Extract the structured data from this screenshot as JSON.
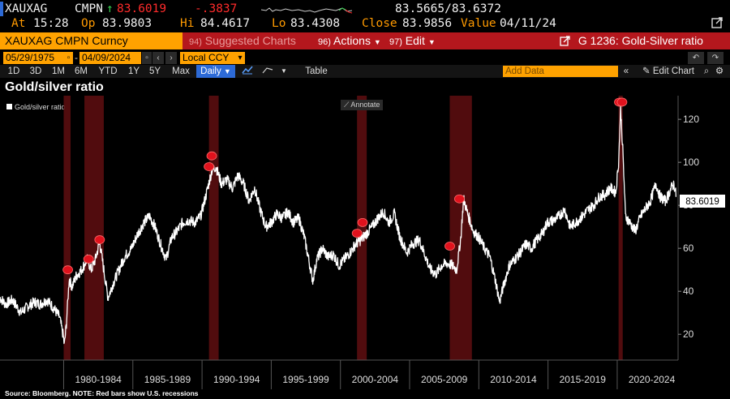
{
  "quote": {
    "ticker": "XAUXAG",
    "source": "CMPN",
    "arrow": "↑",
    "last": "83.6019",
    "change": "-.3837",
    "bid_ask": "83.5665/83.6372",
    "at_label": "At",
    "time": "15:28",
    "open_label": "Op",
    "open": "83.9803",
    "hi_label": "Hi",
    "hi": "84.4617",
    "lo_label": "Lo",
    "lo": "83.4308",
    "close_label": "Close",
    "close": "83.9856",
    "value_label": "Value",
    "value_date": "04/11/24"
  },
  "command": {
    "security": "XAUXAG CMPN Curncy",
    "suggested": "Suggested Charts",
    "suggested_num": "94)",
    "actions": "Actions",
    "actions_num": "96)",
    "edit": "Edit",
    "edit_num": "97)",
    "chart_title": "G 1236: Gold-Silver ratio"
  },
  "dates": {
    "start": "05/29/1975",
    "end": "04/09/2024",
    "currency": "Local CCY"
  },
  "periods": [
    "1D",
    "3D",
    "1M",
    "6M",
    "YTD",
    "1Y",
    "5Y",
    "Max"
  ],
  "frequency": "Daily",
  "table_label": "Table",
  "add_data_placeholder": "Add Data",
  "edit_chart_label": "Edit Chart",
  "chart": {
    "title": "Gold/silver ratio",
    "annotate_label": "Annotate",
    "source_note": "Source: Bloomberg. NOTE: Red bars show U.S. recessions",
    "last_value_label": "83.6019"
  },
  "chart_data": {
    "type": "line",
    "series": [
      {
        "name": "Gold/silver ratio",
        "points": [
          [
            1975.4,
            37
          ],
          [
            1975.8,
            34
          ],
          [
            1976.3,
            36
          ],
          [
            1976.9,
            30
          ],
          [
            1977.4,
            33
          ],
          [
            1977.9,
            35
          ],
          [
            1978.3,
            34
          ],
          [
            1978.8,
            36
          ],
          [
            1979.3,
            32
          ],
          [
            1979.7,
            28
          ],
          [
            1979.95,
            20
          ],
          [
            1980.05,
            15
          ],
          [
            1980.2,
            25
          ],
          [
            1980.4,
            46
          ],
          [
            1980.6,
            42
          ],
          [
            1980.9,
            47
          ],
          [
            1981.3,
            50
          ],
          [
            1981.7,
            55
          ],
          [
            1982.0,
            50
          ],
          [
            1982.3,
            55
          ],
          [
            1982.6,
            63
          ],
          [
            1982.9,
            50
          ],
          [
            1983.2,
            37
          ],
          [
            1983.6,
            44
          ],
          [
            1984.0,
            50
          ],
          [
            1984.4,
            56
          ],
          [
            1984.9,
            60
          ],
          [
            1985.3,
            66
          ],
          [
            1985.8,
            72
          ],
          [
            1986.2,
            75
          ],
          [
            1986.6,
            70
          ],
          [
            1987.0,
            62
          ],
          [
            1987.4,
            55
          ],
          [
            1987.8,
            65
          ],
          [
            1988.2,
            68
          ],
          [
            1988.6,
            72
          ],
          [
            1989.0,
            73
          ],
          [
            1989.5,
            72
          ],
          [
            1989.9,
            75
          ],
          [
            1990.3,
            85
          ],
          [
            1990.7,
            96
          ],
          [
            1991.0,
            98
          ],
          [
            1991.4,
            90
          ],
          [
            1991.8,
            92
          ],
          [
            1992.2,
            88
          ],
          [
            1992.6,
            94
          ],
          [
            1993.0,
            90
          ],
          [
            1993.4,
            82
          ],
          [
            1993.8,
            88
          ],
          [
            1994.2,
            78
          ],
          [
            1994.6,
            70
          ],
          [
            1995.0,
            72
          ],
          [
            1995.4,
            76
          ],
          [
            1995.8,
            74
          ],
          [
            1996.2,
            77
          ],
          [
            1996.6,
            72
          ],
          [
            1997.0,
            74
          ],
          [
            1997.4,
            65
          ],
          [
            1998.0,
            45
          ],
          [
            1998.3,
            55
          ],
          [
            1998.7,
            60
          ],
          [
            1999.1,
            56
          ],
          [
            1999.5,
            57
          ],
          [
            1999.9,
            52
          ],
          [
            2000.3,
            55
          ],
          [
            2000.7,
            58
          ],
          [
            2001.1,
            62
          ],
          [
            2001.5,
            64
          ],
          [
            2001.9,
            67
          ],
          [
            2002.3,
            70
          ],
          [
            2002.7,
            74
          ],
          [
            2003.1,
            77
          ],
          [
            2003.5,
            72
          ],
          [
            2003.9,
            76
          ],
          [
            2004.3,
            65
          ],
          [
            2004.8,
            58
          ],
          [
            2005.2,
            62
          ],
          [
            2005.7,
            64
          ],
          [
            2006.1,
            57
          ],
          [
            2006.5,
            50
          ],
          [
            2006.9,
            48
          ],
          [
            2007.3,
            52
          ],
          [
            2007.7,
            53
          ],
          [
            2008.1,
            52
          ],
          [
            2008.4,
            50
          ],
          [
            2008.7,
            65
          ],
          [
            2008.9,
            83
          ],
          [
            2009.2,
            76
          ],
          [
            2009.6,
            68
          ],
          [
            2010.0,
            65
          ],
          [
            2010.4,
            60
          ],
          [
            2010.8,
            56
          ],
          [
            2011.2,
            45
          ],
          [
            2011.5,
            35
          ],
          [
            2011.8,
            43
          ],
          [
            2012.2,
            52
          ],
          [
            2012.6,
            55
          ],
          [
            2013.0,
            58
          ],
          [
            2013.4,
            62
          ],
          [
            2013.8,
            60
          ],
          [
            2014.2,
            64
          ],
          [
            2014.6,
            67
          ],
          [
            2014.95,
            72
          ],
          [
            2015.4,
            73
          ],
          [
            2015.8,
            75
          ],
          [
            2016.2,
            78
          ],
          [
            2016.6,
            70
          ],
          [
            2017.0,
            72
          ],
          [
            2017.5,
            75
          ],
          [
            2017.9,
            78
          ],
          [
            2018.3,
            80
          ],
          [
            2018.7,
            84
          ],
          [
            2019.1,
            85
          ],
          [
            2019.5,
            88
          ],
          [
            2019.9,
            86
          ],
          [
            2020.1,
            100
          ],
          [
            2020.25,
            125
          ],
          [
            2020.4,
            106
          ],
          [
            2020.6,
            75
          ],
          [
            2020.9,
            72
          ],
          [
            2021.3,
            68
          ],
          [
            2021.7,
            75
          ],
          [
            2022.0,
            78
          ],
          [
            2022.4,
            82
          ],
          [
            2022.8,
            90
          ],
          [
            2023.1,
            84
          ],
          [
            2023.5,
            82
          ],
          [
            2023.9,
            88
          ],
          [
            2024.1,
            90
          ],
          [
            2024.27,
            84
          ]
        ]
      }
    ],
    "last_value": 83.6019,
    "recessions": [
      [
        1980.0,
        1980.5
      ],
      [
        1981.5,
        1982.9
      ],
      [
        1990.5,
        1991.2
      ],
      [
        2001.2,
        2001.9
      ],
      [
        2007.9,
        2009.5
      ],
      [
        2020.1,
        2020.4
      ]
    ],
    "markers": [
      [
        1980.3,
        50
      ],
      [
        1981.8,
        55
      ],
      [
        1982.6,
        64
      ],
      [
        1990.5,
        98
      ],
      [
        1990.7,
        103
      ],
      [
        2001.2,
        67
      ],
      [
        2001.6,
        72
      ],
      [
        2007.9,
        61
      ],
      [
        2008.6,
        83
      ],
      [
        2020.15,
        128
      ],
      [
        2020.35,
        128
      ]
    ],
    "x_tick_labels": [
      "1980-1984",
      "1985-1989",
      "1990-1994",
      "1995-1999",
      "2000-2004",
      "2005-2009",
      "2010-2014",
      "2015-2019",
      "2020-2024"
    ],
    "y_ticks": [
      20,
      40,
      60,
      80,
      100,
      120
    ],
    "xlim": [
      1975.4,
      2024.4
    ],
    "ylim": [
      8,
      131
    ],
    "grid": false,
    "legend": "top-left"
  }
}
